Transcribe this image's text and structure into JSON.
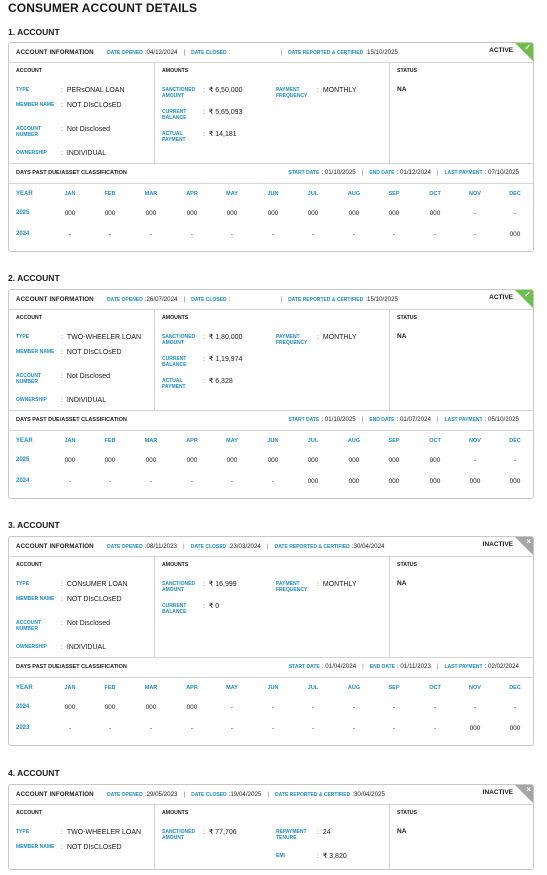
{
  "page_title": "CONSUMER ACCOUNT DETAILS",
  "labels": {
    "account_information": "ACCOUNT INFORMATION",
    "date_opened": "DATE OPENED",
    "date_closed": "DATE CLOSED",
    "date_reported": "DATE REPORTED & CERTIFIED",
    "account": "ACCOUNT",
    "amounts": "AMOUNTS",
    "status": "STATUS",
    "type": "TYPE",
    "member_name": "MEMBER NAME",
    "account_number": "ACCOUNT NUMBER",
    "ownership": "OWNERSHIP",
    "sanctioned_amount": "SANCTIONED AMOUNT",
    "current_balance": "CURRENT BALANCE",
    "actual_payment": "ACTUAL PAYMENT",
    "payment_frequency": "PAYMENT FREQUENCY",
    "repayment_tenure": "REPAYMENT TENURE",
    "emi": "EMI",
    "dpd": "DAYS PAST DUE/ASSET CLASSIFICATION",
    "start_date": "START DATE",
    "end_date": "END DATE",
    "last_payment": "LAST PAYMENT",
    "year": "YEAR",
    "colon": ":"
  },
  "months": [
    "JAN",
    "FEB",
    "MAR",
    "APR",
    "MAY",
    "JUN",
    "JUL",
    "AUG",
    "SEP",
    "OCT",
    "NOV",
    "DEC"
  ],
  "accounts": [
    {
      "heading": "1. ACCOUNT",
      "date_opened": "04/12/2024",
      "date_closed": "",
      "date_reported": "15/10/2025",
      "status_badge": "ACTIVE",
      "corner_glyph": "✓",
      "type": "PERsONAL LOAN",
      "member_name": "NOT DIsCLOsED",
      "account_number": "Not Disclosed",
      "ownership": "INDIVIDUAL",
      "sanctioned_amount": "₹ 6,50,000",
      "current_balance": "₹ 5,65,093",
      "actual_payment": "₹ 14,181",
      "payment_frequency": "MONTHLY",
      "status": "NA",
      "start_date": "01/10/2025",
      "end_date": "01/12/2024",
      "last_payment": "07/10/2025",
      "rows": [
        {
          "year": "2025",
          "values": [
            "000",
            "000",
            "000",
            "000",
            "000",
            "000",
            "000",
            "000",
            "000",
            "000",
            "-",
            "-"
          ]
        },
        {
          "year": "2024",
          "values": [
            "-",
            "-",
            "-",
            "-",
            "-",
            "-",
            "-",
            "-",
            "-",
            "-",
            "-",
            "000"
          ]
        }
      ]
    },
    {
      "heading": "2. ACCOUNT",
      "date_opened": "26/07/2024",
      "date_closed": "",
      "date_reported": "15/10/2025",
      "status_badge": "ACTIVE",
      "corner_glyph": "✓",
      "type": "TWO-WHEELER LOAN",
      "member_name": "NOT DIsCLOsED",
      "account_number": "Not Disclosed",
      "ownership": "INDIVIDUAL",
      "sanctioned_amount": "₹ 1,80,000",
      "current_balance": "₹ 1,19,974",
      "actual_payment": "₹ 6,328",
      "payment_frequency": "MONTHLY",
      "status": "NA",
      "start_date": "01/10/2025",
      "end_date": "01/07/2024",
      "last_payment": "05/10/2025",
      "rows": [
        {
          "year": "2025",
          "values": [
            "000",
            "000",
            "000",
            "000",
            "000",
            "000",
            "000",
            "000",
            "000",
            "000",
            "-",
            "-"
          ]
        },
        {
          "year": "2024",
          "values": [
            "-",
            "-",
            "-",
            "-",
            "-",
            "-",
            "000",
            "000",
            "000",
            "000",
            "000",
            "000"
          ]
        }
      ]
    },
    {
      "heading": "3. ACCOUNT",
      "date_opened": "08/11/2023",
      "date_closed": "23/03/2024",
      "date_reported": "30/04/2024",
      "status_badge": "INACTIVE",
      "corner_glyph": "×",
      "type": "CONsUMER LOAN",
      "member_name": "NOT DIsCLOsED",
      "account_number": "Not Disclosed",
      "ownership": "INDIVIDUAL",
      "sanctioned_amount": "₹ 16,999",
      "current_balance": "₹ 0",
      "payment_frequency": "MONTHLY",
      "status": "NA",
      "start_date": "01/04/2024",
      "end_date": "01/11/2023",
      "last_payment": "02/02/2024",
      "rows": [
        {
          "year": "2024",
          "values": [
            "000",
            "000",
            "000",
            "000",
            "-",
            "-",
            "-",
            "-",
            "-",
            "-",
            "-",
            "-"
          ]
        },
        {
          "year": "2023",
          "values": [
            "-",
            "-",
            "-",
            "-",
            "-",
            "-",
            "-",
            "-",
            "-",
            "-",
            "000",
            "000"
          ]
        }
      ]
    },
    {
      "heading": "4. ACCOUNT",
      "date_opened": "29/05/2023",
      "date_closed": "19/04/2025",
      "date_reported": "30/04/2025",
      "status_badge": "INACTIVE",
      "corner_glyph": "×",
      "type": "TWO-WHEELER LOAN",
      "member_name": "NOT DIsCLOsED",
      "sanctioned_amount": "₹ 77,706",
      "repayment_tenure": "24",
      "emi": "₹ 3,820",
      "status": "NA"
    }
  ]
}
